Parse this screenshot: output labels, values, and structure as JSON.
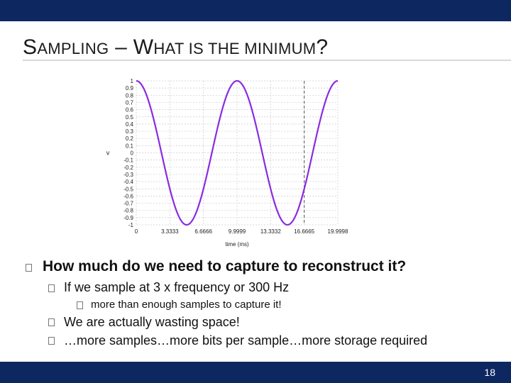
{
  "slide": {
    "title_parts": [
      "S",
      "AMPLING",
      " – W",
      "HAT IS THE MINIMUM",
      "?"
    ],
    "bullet_main": "How much do we need to capture to reconstruct it?",
    "sub1": "If we sample at 3 x frequency or 300 Hz",
    "subsub1": "more than enough samples to capture it!",
    "sub2": "We are actually wasting space!",
    "sub3": "…more samples…more bits per sample…more storage required",
    "page_number": "18"
  },
  "colors": {
    "bar": "#0d2761",
    "curve": "#8a2be2",
    "grid": "#cccccc"
  },
  "chart_data": {
    "type": "line",
    "xlabel": "time (ms)",
    "ylabel": "v",
    "xlim": [
      0,
      19.9998
    ],
    "ylim": [
      -1,
      1
    ],
    "x_ticks": [
      "0",
      "3.3333",
      "6.6666",
      "9.9999",
      "13.3332",
      "16.6665",
      "19.9998"
    ],
    "y_ticks": [
      "1",
      "0.9",
      "0.8",
      "0.7",
      "0.6",
      "0.5",
      "0.4",
      "0.3",
      "0.2",
      "0.1",
      "0",
      "-0.1",
      "-0.2",
      "-0.3",
      "-0.4",
      "-0.5",
      "-0.6",
      "-0.7",
      "-0.8",
      "-0.9",
      "-1"
    ],
    "marker_x": 16.6665,
    "series": [
      {
        "function": "cos",
        "frequency_hz": 100,
        "amplitude": 1,
        "x_start": 0,
        "x_end": 19.9998
      }
    ]
  }
}
